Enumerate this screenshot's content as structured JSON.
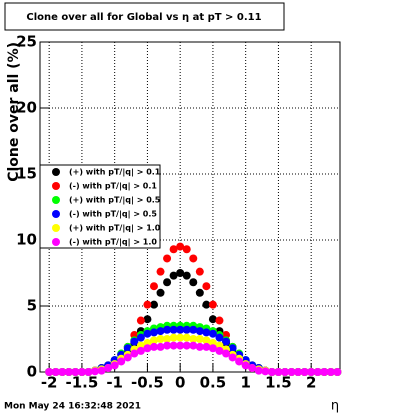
{
  "chart_data": {
    "type": "scatter",
    "title": "Clone  over all for Global vs  η at pT > 0.11",
    "x_label": "η",
    "y_label": "Clone  over all (%)",
    "timestamp": "Mon May 24 16:32:48 2021",
    "x": [
      -2.0,
      -1.9,
      -1.8,
      -1.7,
      -1.6,
      -1.5,
      -1.4,
      -1.3,
      -1.2,
      -1.1,
      -1.0,
      -0.9,
      -0.8,
      -0.7,
      -0.6,
      -0.5,
      -0.4,
      -0.3,
      -0.2,
      -0.1,
      0.0,
      0.1,
      0.2,
      0.3,
      0.4,
      0.5,
      0.6,
      0.7,
      0.8,
      0.9,
      1.0,
      1.1,
      1.2,
      1.3,
      1.4,
      1.5,
      1.6,
      1.7,
      1.8,
      1.9,
      2.0,
      2.1,
      2.2,
      2.3,
      2.4
    ],
    "series": [
      {
        "name": "(+) with pT/|q| > 0.1",
        "color": "#000000",
        "values": [
          0,
          0,
          0,
          0,
          0,
          0,
          0,
          0.1,
          0.2,
          0.4,
          0.6,
          1.0,
          1.5,
          2.2,
          3.1,
          4.0,
          5.1,
          6.0,
          6.8,
          7.3,
          7.5,
          7.3,
          6.8,
          6.0,
          5.1,
          4.0,
          3.1,
          2.2,
          1.5,
          1.0,
          0.6,
          0.4,
          0.2,
          0.1,
          0,
          0,
          0,
          0,
          0,
          0,
          0,
          0,
          0,
          0,
          0
        ]
      },
      {
        "name": "(-) with pT/|q| > 0.1",
        "color": "#ff0000",
        "values": [
          0,
          0,
          0,
          0,
          0,
          0,
          0,
          0.1,
          0.3,
          0.5,
          0.8,
          1.3,
          1.9,
          2.8,
          3.9,
          5.1,
          6.5,
          7.6,
          8.6,
          9.3,
          9.5,
          9.3,
          8.6,
          7.6,
          6.5,
          5.1,
          3.9,
          2.8,
          1.9,
          1.3,
          0.8,
          0.5,
          0.3,
          0.1,
          0,
          0,
          0,
          0,
          0,
          0,
          0,
          0,
          0,
          0,
          0
        ]
      },
      {
        "name": "(+) with pT/|q| > 0.5",
        "color": "#00ff00",
        "values": [
          0,
          0,
          0,
          0,
          0,
          0,
          0,
          0.1,
          0.3,
          0.5,
          0.9,
          1.4,
          1.9,
          2.4,
          2.8,
          3.1,
          3.3,
          3.4,
          3.5,
          3.5,
          3.5,
          3.5,
          3.5,
          3.4,
          3.3,
          3.1,
          2.8,
          2.4,
          1.9,
          1.4,
          0.9,
          0.5,
          0.3,
          0.1,
          0,
          0,
          0,
          0,
          0,
          0,
          0,
          0,
          0,
          0,
          0
        ]
      },
      {
        "name": "(-) with pT/|q| > 0.5",
        "color": "#0000ff",
        "values": [
          0,
          0,
          0,
          0,
          0,
          0,
          0,
          0.1,
          0.3,
          0.5,
          0.9,
          1.3,
          1.8,
          2.3,
          2.6,
          2.9,
          3.0,
          3.1,
          3.2,
          3.2,
          3.2,
          3.2,
          3.2,
          3.1,
          3.0,
          2.9,
          2.6,
          2.3,
          1.8,
          1.3,
          0.9,
          0.5,
          0.3,
          0.1,
          0,
          0,
          0,
          0,
          0,
          0,
          0,
          0,
          0,
          0,
          0
        ]
      },
      {
        "name": "(+) with pT/|q| > 1.0",
        "color": "#ffff00",
        "values": [
          0,
          0,
          0,
          0,
          0,
          0,
          0,
          0.1,
          0.2,
          0.3,
          0.6,
          1.0,
          1.3,
          1.7,
          2.0,
          2.2,
          2.4,
          2.5,
          2.5,
          2.6,
          2.6,
          2.6,
          2.5,
          2.5,
          2.4,
          2.2,
          2.0,
          1.7,
          1.3,
          1.0,
          0.6,
          0.3,
          0.2,
          0.1,
          0,
          0,
          0,
          0,
          0,
          0,
          0,
          0,
          0,
          0,
          0
        ]
      },
      {
        "name": "(-) with pT/|q| > 1.0",
        "color": "#ff00ff",
        "values": [
          0,
          0,
          0,
          0,
          0,
          0,
          0,
          0.05,
          0.1,
          0.3,
          0.5,
          0.8,
          1.1,
          1.4,
          1.6,
          1.8,
          1.9,
          1.9,
          2.0,
          2.0,
          2.0,
          2.0,
          2.0,
          1.9,
          1.9,
          1.8,
          1.6,
          1.4,
          1.1,
          0.8,
          0.5,
          0.3,
          0.1,
          0.05,
          0,
          0,
          0,
          0,
          0,
          0,
          0,
          0,
          0,
          0,
          0
        ]
      }
    ],
    "xlim": [
      -2.14,
      2.44
    ],
    "ylim": [
      0,
      25
    ],
    "xticks": [
      -2,
      -1.5,
      -1,
      -0.5,
      0,
      0.5,
      1,
      1.5,
      2
    ],
    "yticks": [
      0,
      5,
      10,
      15,
      20,
      25
    ],
    "grid": true,
    "legend": "left"
  }
}
